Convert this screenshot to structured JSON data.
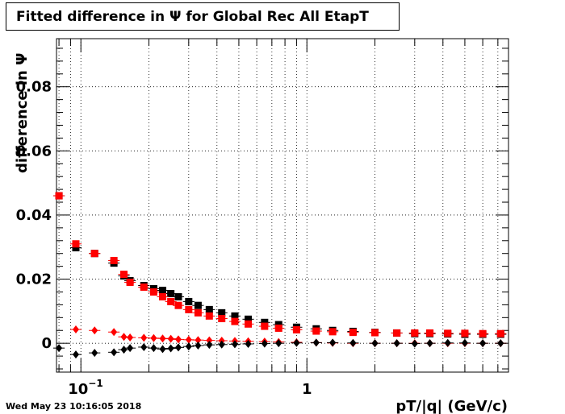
{
  "title": "Fitted difference in  Ψ  for Global Rec All EtapT",
  "timestamp": "Wed May 23 10:16:05 2018",
  "chart_data": {
    "type": "scatter",
    "title": "Fitted difference in  Ψ  for Global Rec All EtapT",
    "xlabel": "pT/|q| (GeV/c)",
    "ylabel": "difference in  Ψ",
    "x_scale": "log",
    "xlim": [
      0.078,
      7.8
    ],
    "ylim": [
      -0.009,
      0.095
    ],
    "grid": true,
    "x_tick_labels": [
      {
        "value": 0.1,
        "base": "10",
        "exp": "−1"
      },
      {
        "value": 1,
        "base": "1",
        "exp": ""
      }
    ],
    "y_ticks": [
      0,
      0.02,
      0.04,
      0.06,
      0.08
    ],
    "y_tick_labels": [
      "0",
      "0.02",
      "0.04",
      "0.06",
      "0.08"
    ],
    "colors": {
      "black": "#000000",
      "red": "#ff0000"
    },
    "series": [
      {
        "marker": "square",
        "color": "#000000",
        "x": [
          0.08,
          0.095,
          0.115,
          0.14,
          0.155,
          0.165,
          0.19,
          0.21,
          0.23,
          0.25,
          0.27,
          0.3,
          0.33,
          0.37,
          0.42,
          0.48,
          0.55,
          0.65,
          0.75,
          0.9,
          1.1,
          1.3,
          1.6,
          2.0,
          2.5,
          3.0,
          3.5,
          4.2,
          5.0,
          6.0,
          7.2
        ],
        "y": [
          0.046,
          0.0298,
          0.028,
          0.025,
          0.021,
          0.0195,
          0.018,
          0.017,
          0.0165,
          0.0155,
          0.0145,
          0.013,
          0.0118,
          0.0105,
          0.0095,
          0.0085,
          0.0075,
          0.0065,
          0.0058,
          0.005,
          0.0045,
          0.004,
          0.0037,
          0.0034,
          0.0032,
          0.003,
          0.003,
          0.0029,
          0.0028,
          0.0028,
          0.0028
        ]
      },
      {
        "marker": "square",
        "color": "#ff0000",
        "x": [
          0.08,
          0.095,
          0.115,
          0.14,
          0.155,
          0.165,
          0.19,
          0.21,
          0.23,
          0.25,
          0.27,
          0.3,
          0.33,
          0.37,
          0.42,
          0.48,
          0.55,
          0.65,
          0.75,
          0.9,
          1.1,
          1.3,
          1.6,
          2.0,
          2.5,
          3.0,
          3.5,
          4.2,
          5.0,
          6.0,
          7.2
        ],
        "y": [
          0.046,
          0.031,
          0.028,
          0.0258,
          0.0215,
          0.019,
          0.0175,
          0.016,
          0.0145,
          0.013,
          0.0118,
          0.0105,
          0.0095,
          0.0085,
          0.0077,
          0.0068,
          0.006,
          0.0053,
          0.0047,
          0.0042,
          0.0038,
          0.0036,
          0.0034,
          0.0033,
          0.0032,
          0.0032,
          0.0032,
          0.0031,
          0.0031,
          0.003,
          0.003
        ]
      },
      {
        "marker": "diamond",
        "color": "#ff0000",
        "x": [
          0.095,
          0.115,
          0.14,
          0.155,
          0.165,
          0.19,
          0.21,
          0.23,
          0.25,
          0.27,
          0.3,
          0.33,
          0.37,
          0.42,
          0.48,
          0.55,
          0.65,
          0.75,
          0.9,
          1.1,
          1.3,
          1.6,
          2.0,
          2.5,
          3.0,
          3.5,
          4.2,
          5.0,
          6.0,
          7.2
        ],
        "y": [
          0.0043,
          0.004,
          0.0035,
          0.002,
          0.0018,
          0.0017,
          0.0016,
          0.0015,
          0.0014,
          0.0012,
          0.0011,
          0.001,
          0.0009,
          0.0008,
          0.0007,
          0.0006,
          0.0005,
          0.0004,
          0.0003,
          0.0002,
          0.0001,
          0.0,
          0.0,
          0.0,
          0.0,
          0.0,
          0.0,
          0.0,
          0.0,
          0.0
        ]
      },
      {
        "marker": "diamond",
        "color": "#000000",
        "x": [
          0.08,
          0.095,
          0.115,
          0.14,
          0.155,
          0.165,
          0.19,
          0.21,
          0.23,
          0.25,
          0.27,
          0.3,
          0.33,
          0.37,
          0.42,
          0.48,
          0.55,
          0.65,
          0.75,
          0.9,
          1.1,
          1.3,
          1.6,
          2.0,
          2.5,
          3.0,
          3.5,
          4.2,
          5.0,
          6.0,
          7.2
        ],
        "y": [
          -0.0015,
          -0.0035,
          -0.003,
          -0.0028,
          -0.002,
          -0.0015,
          -0.0012,
          -0.0015,
          -0.0018,
          -0.0016,
          -0.0013,
          -0.001,
          -0.0007,
          -0.0005,
          -0.0004,
          -0.0003,
          -0.0002,
          -0.0001,
          0.0,
          0.0001,
          0.0002,
          0.0002,
          0.0001,
          0.0,
          0.0,
          -0.0001,
          0.0,
          0.0001,
          0.0001,
          0.0,
          0.0
        ]
      }
    ]
  }
}
